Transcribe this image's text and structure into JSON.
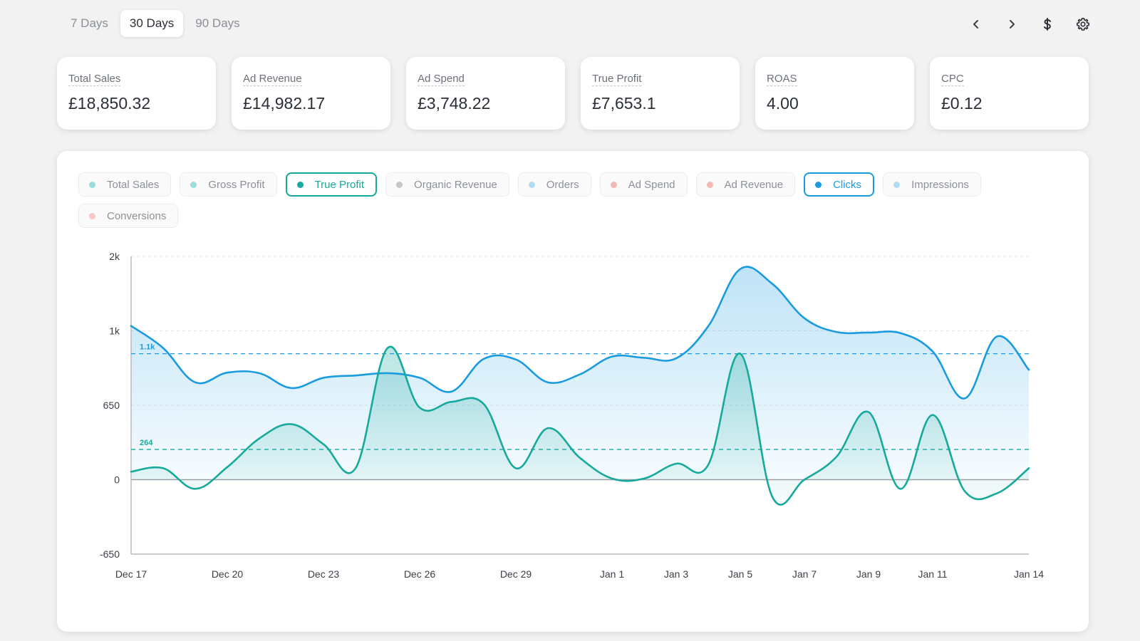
{
  "range_tabs": [
    {
      "label": "7 Days",
      "active": false
    },
    {
      "label": "30 Days",
      "active": true
    },
    {
      "label": "90 Days",
      "active": false
    }
  ],
  "icons": [
    "chevron-left-icon",
    "chevron-right-icon",
    "dollar-icon",
    "gear-icon"
  ],
  "kpis": [
    {
      "label": "Total Sales",
      "value": "£18,850.32"
    },
    {
      "label": "Ad Revenue",
      "value": "£14,982.17"
    },
    {
      "label": "Ad Spend",
      "value": "£3,748.22"
    },
    {
      "label": "True Profit",
      "value": "£7,653.1"
    },
    {
      "label": "ROAS",
      "value": "4.00"
    },
    {
      "label": "CPC",
      "value": "£0.12"
    }
  ],
  "metric_chips": [
    {
      "label": "Total Sales",
      "color": "#5cc9c2",
      "active": false
    },
    {
      "label": "Gross Profit",
      "color": "#5cc9c2",
      "active": false
    },
    {
      "label": "True Profit",
      "color": "#17a99b",
      "active": true
    },
    {
      "label": "Organic Revenue",
      "color": "#a0a3a8",
      "active": false
    },
    {
      "label": "Orders",
      "color": "#7fc6ef",
      "active": false
    },
    {
      "label": "Ad Spend",
      "color": "#f08a80",
      "active": false
    },
    {
      "label": "Ad Revenue",
      "color": "#f08a80",
      "active": false
    },
    {
      "label": "Clicks",
      "color": "#1a9be0",
      "active": true
    },
    {
      "label": "Impressions",
      "color": "#7fc6ef",
      "active": false
    },
    {
      "label": "Conversions",
      "color": "#f0a9a3",
      "active": false
    }
  ],
  "chart_data": {
    "type": "line",
    "y_ticks": [
      -650,
      0,
      650,
      1300,
      1950
    ],
    "y_tick_labels": [
      "-650",
      "0",
      "650",
      "1k",
      "2k"
    ],
    "ylim": [
      -650,
      1950
    ],
    "x_tick_labels": [
      "Dec 17",
      "Dec 20",
      "Dec 23",
      "Dec 26",
      "Dec 29",
      "Jan 1",
      "Jan 3",
      "Jan 5",
      "Jan 7",
      "Jan 9",
      "Jan 11",
      "Jan 14"
    ],
    "x_tick_index": [
      0,
      3,
      6,
      9,
      12,
      15,
      17,
      19,
      21,
      23,
      25,
      28
    ],
    "x_dates": [
      "Dec 17",
      "Dec 18",
      "Dec 19",
      "Dec 20",
      "Dec 21",
      "Dec 22",
      "Dec 23",
      "Dec 24",
      "Dec 25",
      "Dec 26",
      "Dec 27",
      "Dec 28",
      "Dec 29",
      "Dec 30",
      "Dec 31",
      "Jan 1",
      "Jan 2",
      "Jan 3",
      "Jan 4",
      "Jan 5",
      "Jan 6",
      "Jan 7",
      "Jan 8",
      "Jan 9",
      "Jan 10",
      "Jan 11",
      "Jan 12",
      "Jan 13",
      "Jan 14"
    ],
    "series": [
      {
        "name": "Clicks",
        "color": "#1a9be0",
        "values": [
          1343,
          1150,
          850,
          935,
          930,
          800,
          890,
          910,
          930,
          890,
          770,
          1055,
          1050,
          850,
          920,
          1075,
          1065,
          1060,
          1340,
          1840,
          1710,
          1410,
          1290,
          1285,
          1280,
          1120,
          710,
          1250,
          960
        ],
        "ref_line": {
          "value": 1100,
          "label": "1.1k"
        }
      },
      {
        "name": "True Profit",
        "color": "#17a99b",
        "values": [
          70,
          100,
          -80,
          110,
          360,
          485,
          310,
          100,
          1150,
          630,
          680,
          660,
          100,
          450,
          190,
          10,
          10,
          140,
          130,
          1100,
          -150,
          0,
          200,
          590,
          -80,
          565,
          -100,
          -120,
          100
        ],
        "ref_line": {
          "value": 264,
          "label": "264"
        }
      }
    ]
  }
}
